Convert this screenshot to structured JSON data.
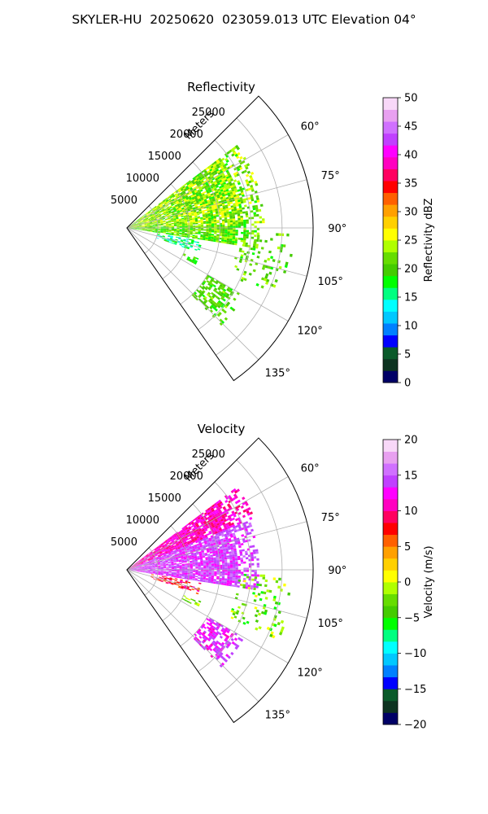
{
  "figure_title": "SKYLER-HU  20250620  023059.013 UTC Elevation 04°",
  "chart_data": [
    {
      "type": "heatmap",
      "projection": "polar-sector",
      "title": "Reflectivity",
      "radial_label": "Meters",
      "theta_range_deg": [
        45,
        145
      ],
      "r_max": 30000,
      "r_ticks": [
        5000,
        10000,
        15000,
        20000,
        25000
      ],
      "r_tick_labels": [
        "5000",
        "10000",
        "15000",
        "20000",
        "25000"
      ],
      "theta_ticks": [
        60,
        75,
        90,
        105,
        120,
        135
      ],
      "theta_tick_labels": [
        "60°",
        "75°",
        "90°",
        "105°",
        "120°",
        "135°"
      ],
      "grid": true,
      "colorbar": {
        "label": "Reflectivity dBZ",
        "range": [
          0,
          50
        ],
        "ticks": [
          0,
          5,
          10,
          15,
          20,
          25,
          30,
          35,
          40,
          45,
          50
        ],
        "tick_labels": [
          "0",
          "5",
          "10",
          "15",
          "20",
          "25",
          "30",
          "35",
          "40",
          "45",
          "50"
        ],
        "stops": [
          "#000066",
          "#0d3320",
          "#0a5a2a",
          "#0000ff",
          "#0080ff",
          "#00c8ff",
          "#00ffff",
          "#00ff80",
          "#00ff00",
          "#44cc00",
          "#66dd00",
          "#b0ff00",
          "#ffff00",
          "#ffd000",
          "#ffa000",
          "#ff6000",
          "#ff0000",
          "#ff0060",
          "#ff00c0",
          "#ff00ff",
          "#c040ff",
          "#d070ff",
          "#e8a0f0",
          "#f8d8f8"
        ]
      },
      "echoes": [
        {
          "theta": [
            53,
            88
          ],
          "r": [
            0,
            22000
          ],
          "value_range": [
            18,
            27
          ],
          "density": "dense"
        },
        {
          "theta": [
            88,
            99
          ],
          "r": [
            0,
            21000
          ],
          "value_range": [
            17,
            25
          ],
          "density": "dense"
        },
        {
          "theta": [
            100,
            109
          ],
          "r": [
            5000,
            12000
          ],
          "value_range": [
            12,
            19
          ],
          "density": "medium"
        },
        {
          "theta": [
            113,
            118
          ],
          "r": [
            10000,
            13000
          ],
          "value_range": [
            17,
            22
          ],
          "density": "medium"
        },
        {
          "theta": [
            120,
            136
          ],
          "r": [
            15000,
            21500
          ],
          "value_range": [
            18,
            23
          ],
          "density": "medium"
        },
        {
          "theta": [
            92,
            115
          ],
          "r": [
            18000,
            27000
          ],
          "value_range": [
            18,
            24
          ],
          "density": "sparse"
        }
      ]
    },
    {
      "type": "heatmap",
      "projection": "polar-sector",
      "title": "Velocity",
      "radial_label": "Meters",
      "theta_range_deg": [
        45,
        145
      ],
      "r_max": 30000,
      "r_ticks": [
        5000,
        10000,
        15000,
        20000,
        25000
      ],
      "r_tick_labels": [
        "5000",
        "10000",
        "15000",
        "20000",
        "25000"
      ],
      "theta_ticks": [
        60,
        75,
        90,
        105,
        120,
        135
      ],
      "theta_tick_labels": [
        "60°",
        "75°",
        "90°",
        "105°",
        "120°",
        "135°"
      ],
      "grid": true,
      "colorbar": {
        "label": "Velocity (m/s)",
        "range": [
          -20,
          20
        ],
        "ticks": [
          -20,
          -15,
          -10,
          -5,
          0,
          5,
          10,
          15,
          20
        ],
        "tick_labels": [
          "−20",
          "−15",
          "−10",
          "−5",
          "0",
          "5",
          "10",
          "15",
          "20"
        ],
        "stops": [
          "#000066",
          "#0d3320",
          "#0a5a2a",
          "#0000ff",
          "#0080ff",
          "#00c8ff",
          "#00ffff",
          "#00ff80",
          "#00ff00",
          "#44cc00",
          "#66dd00",
          "#b0ff00",
          "#ffff00",
          "#ffd000",
          "#ffa000",
          "#ff6000",
          "#ff0000",
          "#ff0060",
          "#ff00c0",
          "#ff00ff",
          "#c040ff",
          "#d070ff",
          "#e8a0f0",
          "#f8d8f8"
        ]
      },
      "echoes": [
        {
          "theta": [
            53,
            68
          ],
          "r": [
            0,
            22000
          ],
          "value_range": [
            9,
            13
          ],
          "density": "dense"
        },
        {
          "theta": [
            68,
            99
          ],
          "r": [
            0,
            21000
          ],
          "value_range": [
            12,
            16
          ],
          "density": "dense"
        },
        {
          "theta": [
            100,
            109
          ],
          "r": [
            4000,
            12000
          ],
          "value_range": [
            5,
            11
          ],
          "density": "medium"
        },
        {
          "theta": [
            113,
            118
          ],
          "r": [
            10000,
            13000
          ],
          "value_range": [
            -5,
            2
          ],
          "density": "medium"
        },
        {
          "theta": [
            120,
            136
          ],
          "r": [
            15000,
            21500
          ],
          "value_range": [
            11,
            15
          ],
          "density": "medium"
        },
        {
          "theta": [
            92,
            115
          ],
          "r": [
            18000,
            27000
          ],
          "value_range": [
            -6,
            1
          ],
          "density": "sparse"
        }
      ]
    }
  ]
}
